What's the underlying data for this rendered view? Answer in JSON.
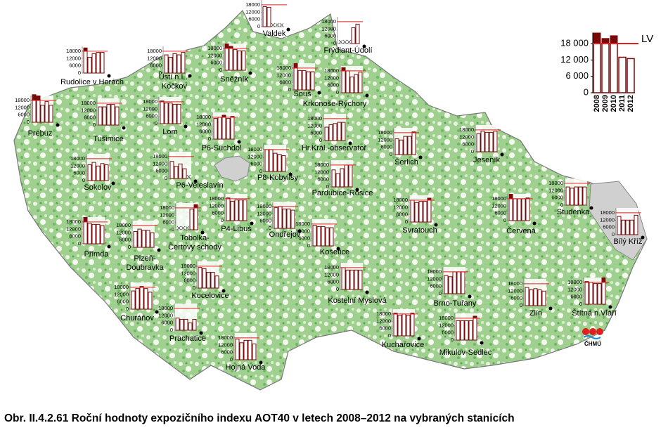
{
  "mini_ylim": [
    0,
    22000
  ],
  "mini_yticks": [
    0,
    6000,
    12000,
    18000
  ],
  "limit_value": 18000,
  "legend": {
    "years": [
      "2008",
      "2009",
      "2010",
      "2011",
      "2012"
    ],
    "values": [
      22000,
      20000,
      21000,
      13000,
      12500
    ],
    "ylim": [
      0,
      22000
    ],
    "yticks": [
      0,
      {
        "value": 6000,
        "label": "6 000"
      },
      {
        "value": 12000,
        "label": "12 000"
      },
      {
        "value": 18000,
        "label": "18 000"
      }
    ],
    "limit_label": "LV"
  },
  "logo": "ČHMÚ",
  "caption": "Obr. II.4.2.61  Roční hodnoty expozičního indexu AOT40 v letech 2008–2012 na vybraných stanicích",
  "stations": [
    {
      "name": "Valdek",
      "values": [
        16500,
        16000,
        null,
        null,
        null
      ]
    },
    {
      "name": "Frýdlant-Údolí",
      "values": [
        null,
        null,
        null,
        13000,
        16000
      ]
    },
    {
      "name": "Rudolice v Horách",
      "values": [
        21000,
        13000,
        16000,
        17000,
        17000
      ]
    },
    {
      "name": [
        "Ústí n.L.-",
        "Kočkov"
      ],
      "values": [
        15000,
        13000,
        16000,
        15000,
        17000
      ]
    },
    {
      "name": "Sněžník",
      "values": [
        22000,
        20000,
        17000,
        16000,
        16000
      ]
    },
    {
      "name": "Souš",
      "values": [
        22000,
        16000,
        16000,
        15000,
        15000
      ]
    },
    {
      "name": "Krkonoše-Rýchory",
      "values": [
        21000,
        18000,
        13000,
        15000,
        17000
      ]
    },
    {
      "name": "Prebuz",
      "values": [
        23000,
        22000,
        14000,
        17000,
        14000
      ]
    },
    {
      "name": "Tušimice",
      "values": [
        15000,
        15000,
        17000,
        17000,
        15000
      ]
    },
    {
      "name": "Lom",
      "values": [
        19000,
        17000,
        17000,
        16000,
        16000
      ]
    },
    {
      "name": "P6-Suchdol",
      "values": [
        17000,
        18000,
        20000,
        17000,
        19000
      ]
    },
    {
      "name": "Hr.Král.-observatoř",
      "values": [
        11000,
        13000,
        14000,
        15000,
        15000
      ]
    },
    {
      "name": "Šerlich",
      "values": [
        13000,
        12000,
        15000,
        15000,
        19000
      ]
    },
    {
      "name": "Jeseník",
      "values": [
        15000,
        17000,
        16000,
        16000,
        17000
      ]
    },
    {
      "name": "Sokolov",
      "values": [
        13000,
        15000,
        12000,
        14000,
        13000
      ]
    },
    {
      "name": "P6-Veleslavín",
      "values": [
        14000,
        10000,
        12000,
        8000,
        null
      ]
    },
    {
      "name": "P8-Kobylisy",
      "values": [
        18000,
        18000,
        15000,
        14000,
        13000
      ]
    },
    {
      "name": "Pardubice-Rosice",
      "values": [
        14000,
        11000,
        15000,
        18000,
        18000
      ]
    },
    {
      "name": "Studénka",
      "values": [
        15000,
        14000,
        15000,
        15000,
        15000
      ]
    },
    {
      "name": "Bílý Kříž",
      "values": [
        15000,
        12000,
        12000,
        12000,
        16000
      ]
    },
    {
      "name": [
        "Tobolka-",
        "Čertovy schody"
      ],
      "values": [
        null,
        null,
        null,
        17000,
        21000
      ]
    },
    {
      "name": "P4-Libuš",
      "values": [
        19000,
        16000,
        17000,
        17000,
        17000
      ]
    },
    {
      "name": "Ondřejov",
      "values": [
        17000,
        18000,
        16000,
        16000,
        15000
      ]
    },
    {
      "name": "Svratouch",
      "values": [
        18000,
        16000,
        17000,
        17000,
        20000
      ]
    },
    {
      "name": "Červená",
      "values": [
        22000,
        18000,
        18000,
        18000,
        19000
      ]
    },
    {
      "name": "Přimda",
      "values": [
        22000,
        17000,
        16000,
        16000,
        15000
      ]
    },
    {
      "name": [
        "Plzeň-",
        "Doubravka"
      ],
      "values": [
        13000,
        15000,
        14000,
        14000,
        12000
      ]
    },
    {
      "name": "Košetice",
      "values": [
        17000,
        16000,
        16000,
        15000,
        15000
      ]
    },
    {
      "name": "Kocelovice",
      "values": [
        17000,
        16000,
        13000,
        13000,
        10000
      ]
    },
    {
      "name": "Kostelní Myslová",
      "values": [
        18000,
        16000,
        16000,
        16000,
        16000
      ]
    },
    {
      "name": "Brno-Tuřany",
      "values": [
        15000,
        14000,
        18000,
        18000,
        18000
      ]
    },
    {
      "name": "Zlín",
      "values": [
        15000,
        13000,
        14000,
        13000,
        12000
      ]
    },
    {
      "name": "Štítná n.Vláří",
      "values": [
        19000,
        18000,
        17000,
        17000,
        22000
      ]
    },
    {
      "name": "Churáňov",
      "values": [
        15000,
        17000,
        19000,
        17000,
        14000
      ]
    },
    {
      "name": "Prachatice",
      "values": [
        10000,
        9000,
        9000,
        6000,
        9000
      ]
    },
    {
      "name": "Kuchařovice",
      "values": [
        19000,
        17000,
        18000,
        17000,
        19000
      ]
    },
    {
      "name": "Mikulov-Sedlec",
      "values": [
        16000,
        16000,
        16000,
        16000,
        20000
      ]
    },
    {
      "name": "Hojná Voda",
      "values": [
        17000,
        14000,
        16000,
        16000,
        13000
      ]
    }
  ]
}
